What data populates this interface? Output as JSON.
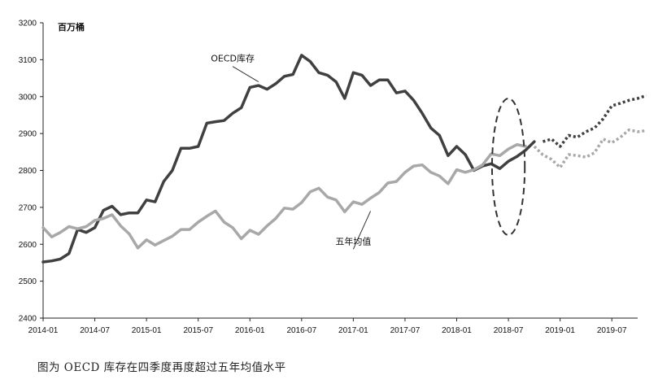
{
  "caption": "图为 OECD 库存在四季度再度超过五年均值水平",
  "colors": {
    "oecd": "#404040",
    "avg": "#a8a8a8",
    "axis": "#222222",
    "highlight": "#333333"
  },
  "chart_data": {
    "type": "line",
    "unit_label": "百万桶",
    "ylim": [
      2400,
      3200
    ],
    "yticks": [
      2400,
      2500,
      2600,
      2700,
      2800,
      2900,
      3000,
      3100,
      3200
    ],
    "x_start": "2014-01",
    "x_end": "2019-10",
    "xticks": [
      "2014-01",
      "2014-07",
      "2015-01",
      "2015-07",
      "2016-01",
      "2016-07",
      "2017-01",
      "2017-07",
      "2018-01",
      "2018-07",
      "2019-01",
      "2019-07"
    ],
    "grid": false,
    "series": [
      {
        "name": "OECD库存",
        "label_month": "2016-02",
        "style": "solid",
        "values": [
          2552,
          2555,
          2560,
          2575,
          2640,
          2632,
          2645,
          2692,
          2703,
          2680,
          2685,
          2685,
          2720,
          2715,
          2770,
          2800,
          2860,
          2860,
          2865,
          2928,
          2932,
          2935,
          2955,
          2970,
          3025,
          3030,
          3020,
          3035,
          3055,
          3060,
          3112,
          3095,
          3065,
          3058,
          3040,
          2995,
          3065,
          3058,
          3030,
          3045,
          3045,
          3010,
          3015,
          2990,
          2955,
          2915,
          2895,
          2840,
          2865,
          2843,
          2800,
          2812,
          2818,
          2805,
          2825,
          2838,
          2855,
          2878
        ]
      },
      {
        "name": "OECD库存",
        "style": "dotted",
        "start_month": "2018-11",
        "values": [
          2878,
          2885,
          2865,
          2895,
          2890,
          2905,
          2915,
          2940,
          2975,
          2982,
          2990,
          2995,
          3003
        ]
      },
      {
        "name": "五年均值",
        "label_month": "2017-03",
        "style": "solid",
        "values": [
          2645,
          2620,
          2632,
          2648,
          2642,
          2648,
          2665,
          2670,
          2680,
          2650,
          2628,
          2590,
          2612,
          2598,
          2610,
          2622,
          2640,
          2640,
          2660,
          2676,
          2690,
          2660,
          2645,
          2615,
          2638,
          2627,
          2650,
          2670,
          2698,
          2695,
          2713,
          2742,
          2752,
          2728,
          2720,
          2688,
          2715,
          2708,
          2725,
          2740,
          2766,
          2770,
          2795,
          2812,
          2815,
          2795,
          2785,
          2764,
          2802,
          2795,
          2802,
          2815,
          2845,
          2840,
          2858,
          2870,
          2865
        ]
      },
      {
        "name": "五年均值",
        "style": "dotted",
        "start_month": "2018-10",
        "values": [
          2865,
          2842,
          2830,
          2808,
          2843,
          2840,
          2836,
          2848,
          2885,
          2875,
          2890,
          2910,
          2905,
          2908
        ]
      }
    ],
    "annotations": [
      {
        "text": "OECD库存",
        "target_month": "2016-02",
        "target_value": 3040,
        "label_month": "2015-11",
        "label_value": 3095
      },
      {
        "text": "五年均值",
        "target_month": "2017-03",
        "target_value": 2690,
        "label_month": "2017-01",
        "label_value": 2600
      }
    ],
    "highlight_ellipse": {
      "center_month": "2018-07",
      "center_value": 2810,
      "radius_months": 1.9,
      "radius_value": 185
    }
  }
}
